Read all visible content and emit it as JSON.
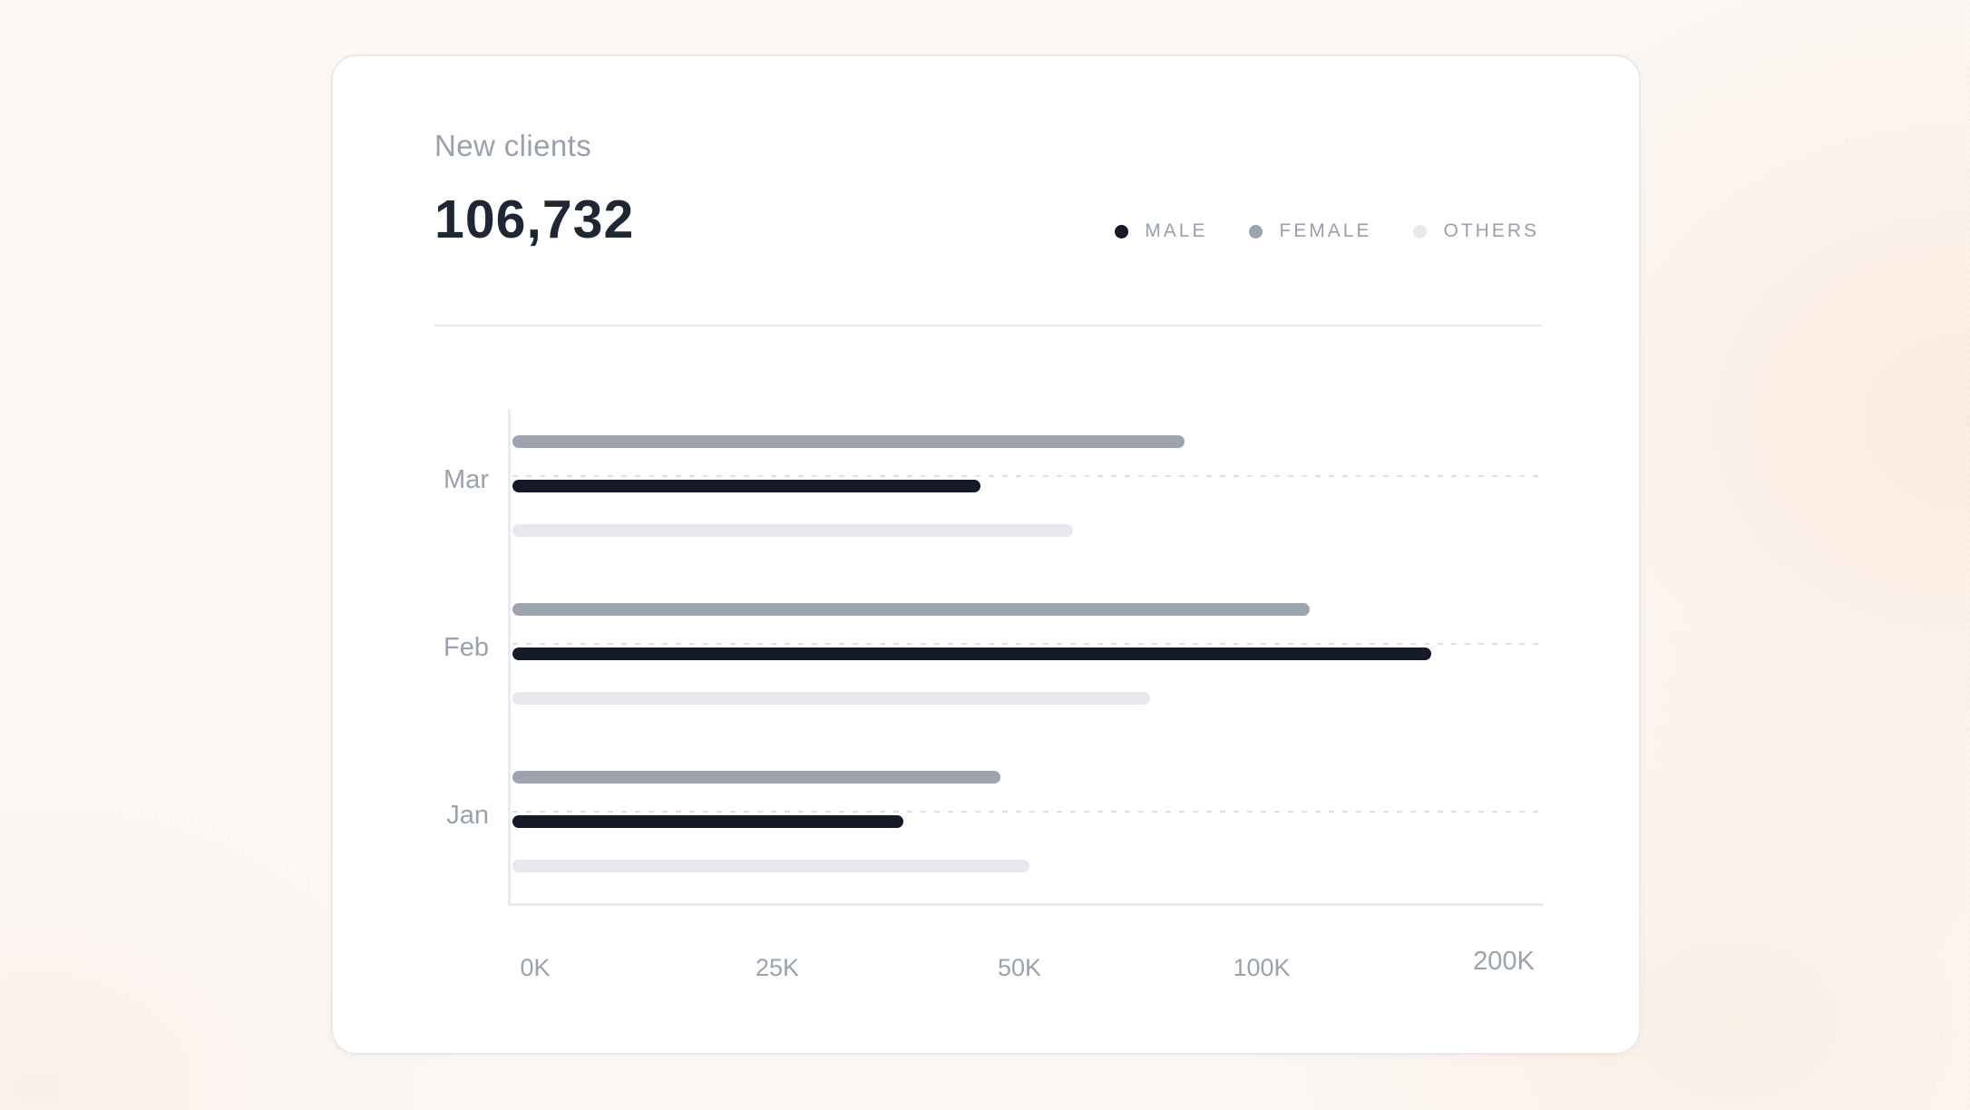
{
  "card": {
    "title": "New clients",
    "value": "106,732"
  },
  "legend": [
    {
      "label": "MALE",
      "color": "#141a28"
    },
    {
      "label": "FEMALE",
      "color": "#9da4af"
    },
    {
      "label": "OTHERS",
      "color": "#e6e8ed"
    }
  ],
  "chart_data": {
    "type": "bar",
    "orientation": "horizontal",
    "title": "New clients",
    "total_label_value": "106,732",
    "categories": [
      "Mar",
      "Feb",
      "Jan"
    ],
    "bar_order_top_to_bottom": [
      "FEMALE",
      "MALE",
      "OTHERS"
    ],
    "series": [
      {
        "name": "FEMALE",
        "color": "#9da4af",
        "values": [
          84,
          120,
          48
        ]
      },
      {
        "name": "MALE",
        "color": "#141a28",
        "values": [
          46,
          170,
          38
        ]
      },
      {
        "name": "OTHERS",
        "color": "#e6e8ed",
        "values": [
          61,
          77,
          52
        ]
      }
    ],
    "value_unit": "K",
    "x_ticks": [
      "0K",
      "25K",
      "50K",
      "100K",
      "200K"
    ],
    "x_tick_values": [
      0,
      25,
      50,
      100,
      200
    ],
    "xlim": [
      0,
      200
    ],
    "x_scale": "piecewise-equal-segments",
    "grid": "dashed-horizontal-per-category",
    "legend_position": "top-right",
    "colors": {
      "axis": "#e9ebef",
      "gridline_dash": "#ca8e88",
      "labels": "#9aa2ae",
      "title": "#99a1ae",
      "value_text": "#1f2735",
      "card_background": "#ffffff",
      "page_background": "#fcf9f7"
    }
  }
}
